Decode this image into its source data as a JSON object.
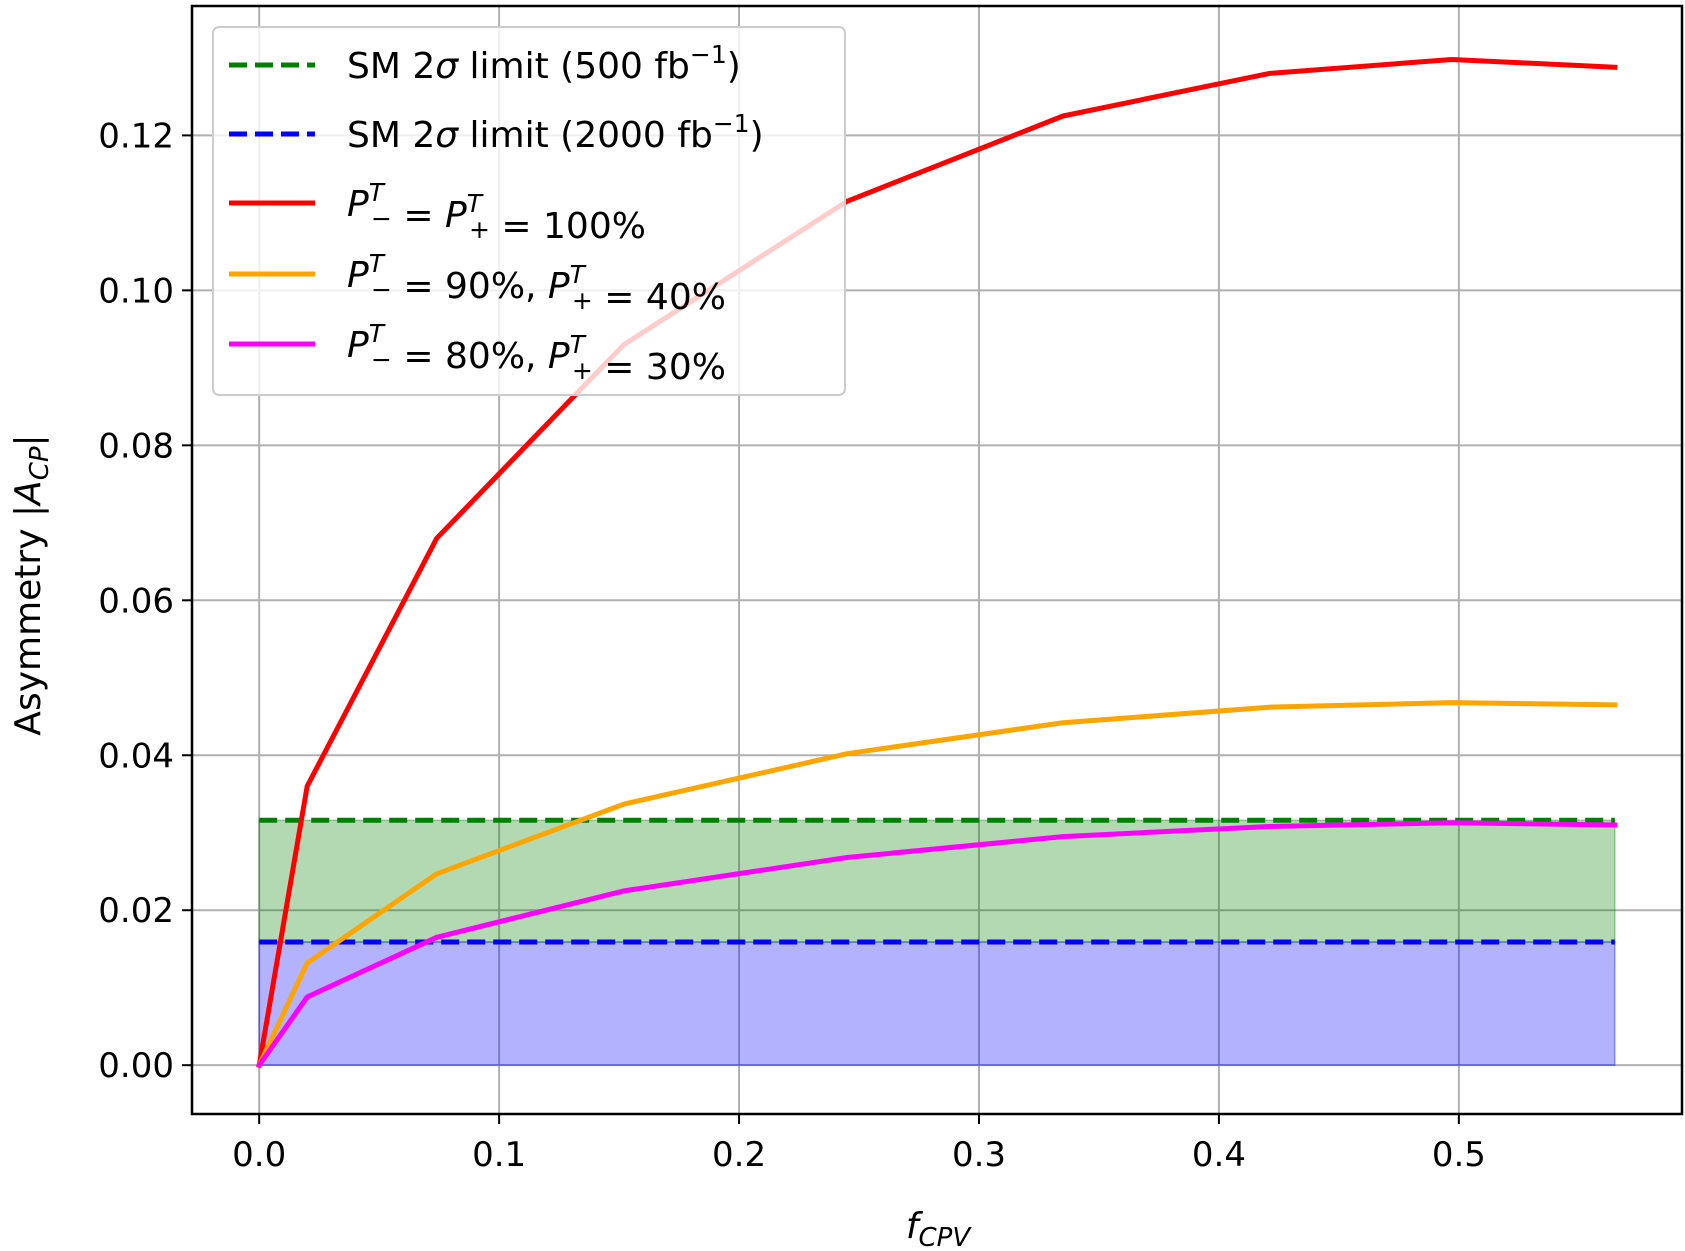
{
  "chart_data": {
    "type": "line",
    "xlabel": "f_CPV",
    "ylabel": "Asymmetry |A_CP|",
    "xlim": [
      -0.028,
      0.593
    ],
    "ylim": [
      -0.0063,
      0.1367
    ],
    "x_ticks": [
      0.0,
      0.1,
      0.2,
      0.3,
      0.4,
      0.5
    ],
    "x_tick_labels": [
      "0.0",
      "0.1",
      "0.2",
      "0.3",
      "0.4",
      "0.5"
    ],
    "y_ticks": [
      0.0,
      0.02,
      0.04,
      0.06,
      0.08,
      0.1,
      0.12
    ],
    "y_tick_labels": [
      "0.00",
      "0.02",
      "0.04",
      "0.06",
      "0.08",
      "0.10",
      "0.12"
    ],
    "grid": true,
    "legend_position": "upper-left",
    "bands": [
      {
        "name": "SM 2σ limit (2000 fb⁻¹) band",
        "y_from": 0.0,
        "y_to": 0.0159,
        "x_from": 0.0,
        "x_to": 0.565,
        "color": "#0000ff",
        "opacity": 0.3
      },
      {
        "name": "SM 2σ limit (500 fb⁻¹) band",
        "y_from": 0.0159,
        "y_to": 0.0316,
        "x_from": 0.0,
        "x_to": 0.565,
        "color": "#008000",
        "opacity": 0.3
      }
    ],
    "series": [
      {
        "name": "SM 2σ limit (500 fb⁻¹)",
        "label_parts": [
          "SM 2",
          "σ",
          " limit (500 fb",
          "−1",
          ")"
        ],
        "style": "dashed",
        "color": "#008000",
        "x": [
          0.0,
          0.565
        ],
        "y": [
          0.0316,
          0.0316
        ]
      },
      {
        "name": "SM 2σ limit (2000 fb⁻¹)",
        "label_parts": [
          "SM 2",
          "σ",
          " limit (2000 fb",
          "−1",
          ")"
        ],
        "style": "dashed",
        "color": "#0000ff",
        "x": [
          0.0,
          0.565
        ],
        "y": [
          0.0159,
          0.0159
        ]
      },
      {
        "name": "P−T = P+T = 100%",
        "label_parts": [
          "P",
          "−",
          "T",
          " = ",
          "P",
          "+",
          "T",
          " = 100%"
        ],
        "style": "solid",
        "color": "#ff0000",
        "x": [
          0.0,
          0.02,
          0.074,
          0.152,
          0.245,
          0.335,
          0.421,
          0.497,
          0.565
        ],
        "y": [
          0.0,
          0.036,
          0.068,
          0.093,
          0.1115,
          0.1225,
          0.128,
          0.1298,
          0.1288
        ]
      },
      {
        "name": "P−T = 90%, P+T = 40%",
        "label_parts": [
          "P",
          "−",
          "T",
          " = 90%, ",
          "P",
          "+",
          "T",
          " = 40%"
        ],
        "style": "solid",
        "color": "#ffa500",
        "x": [
          0.0,
          0.02,
          0.074,
          0.152,
          0.245,
          0.335,
          0.421,
          0.497,
          0.565
        ],
        "y": [
          0.0,
          0.0132,
          0.0247,
          0.0337,
          0.0402,
          0.0442,
          0.0462,
          0.0468,
          0.0465
        ]
      },
      {
        "name": "P−T = 80%, P+T = 30%",
        "label_parts": [
          "P",
          "−",
          "T",
          " = 80%, ",
          "P",
          "+",
          "T",
          " = 30%"
        ],
        "style": "solid",
        "color": "#ff00ff",
        "x": [
          0.0,
          0.02,
          0.074,
          0.152,
          0.245,
          0.335,
          0.421,
          0.497,
          0.565
        ],
        "y": [
          0.0,
          0.0088,
          0.0165,
          0.0225,
          0.0268,
          0.0295,
          0.0308,
          0.0313,
          0.031
        ]
      }
    ]
  }
}
